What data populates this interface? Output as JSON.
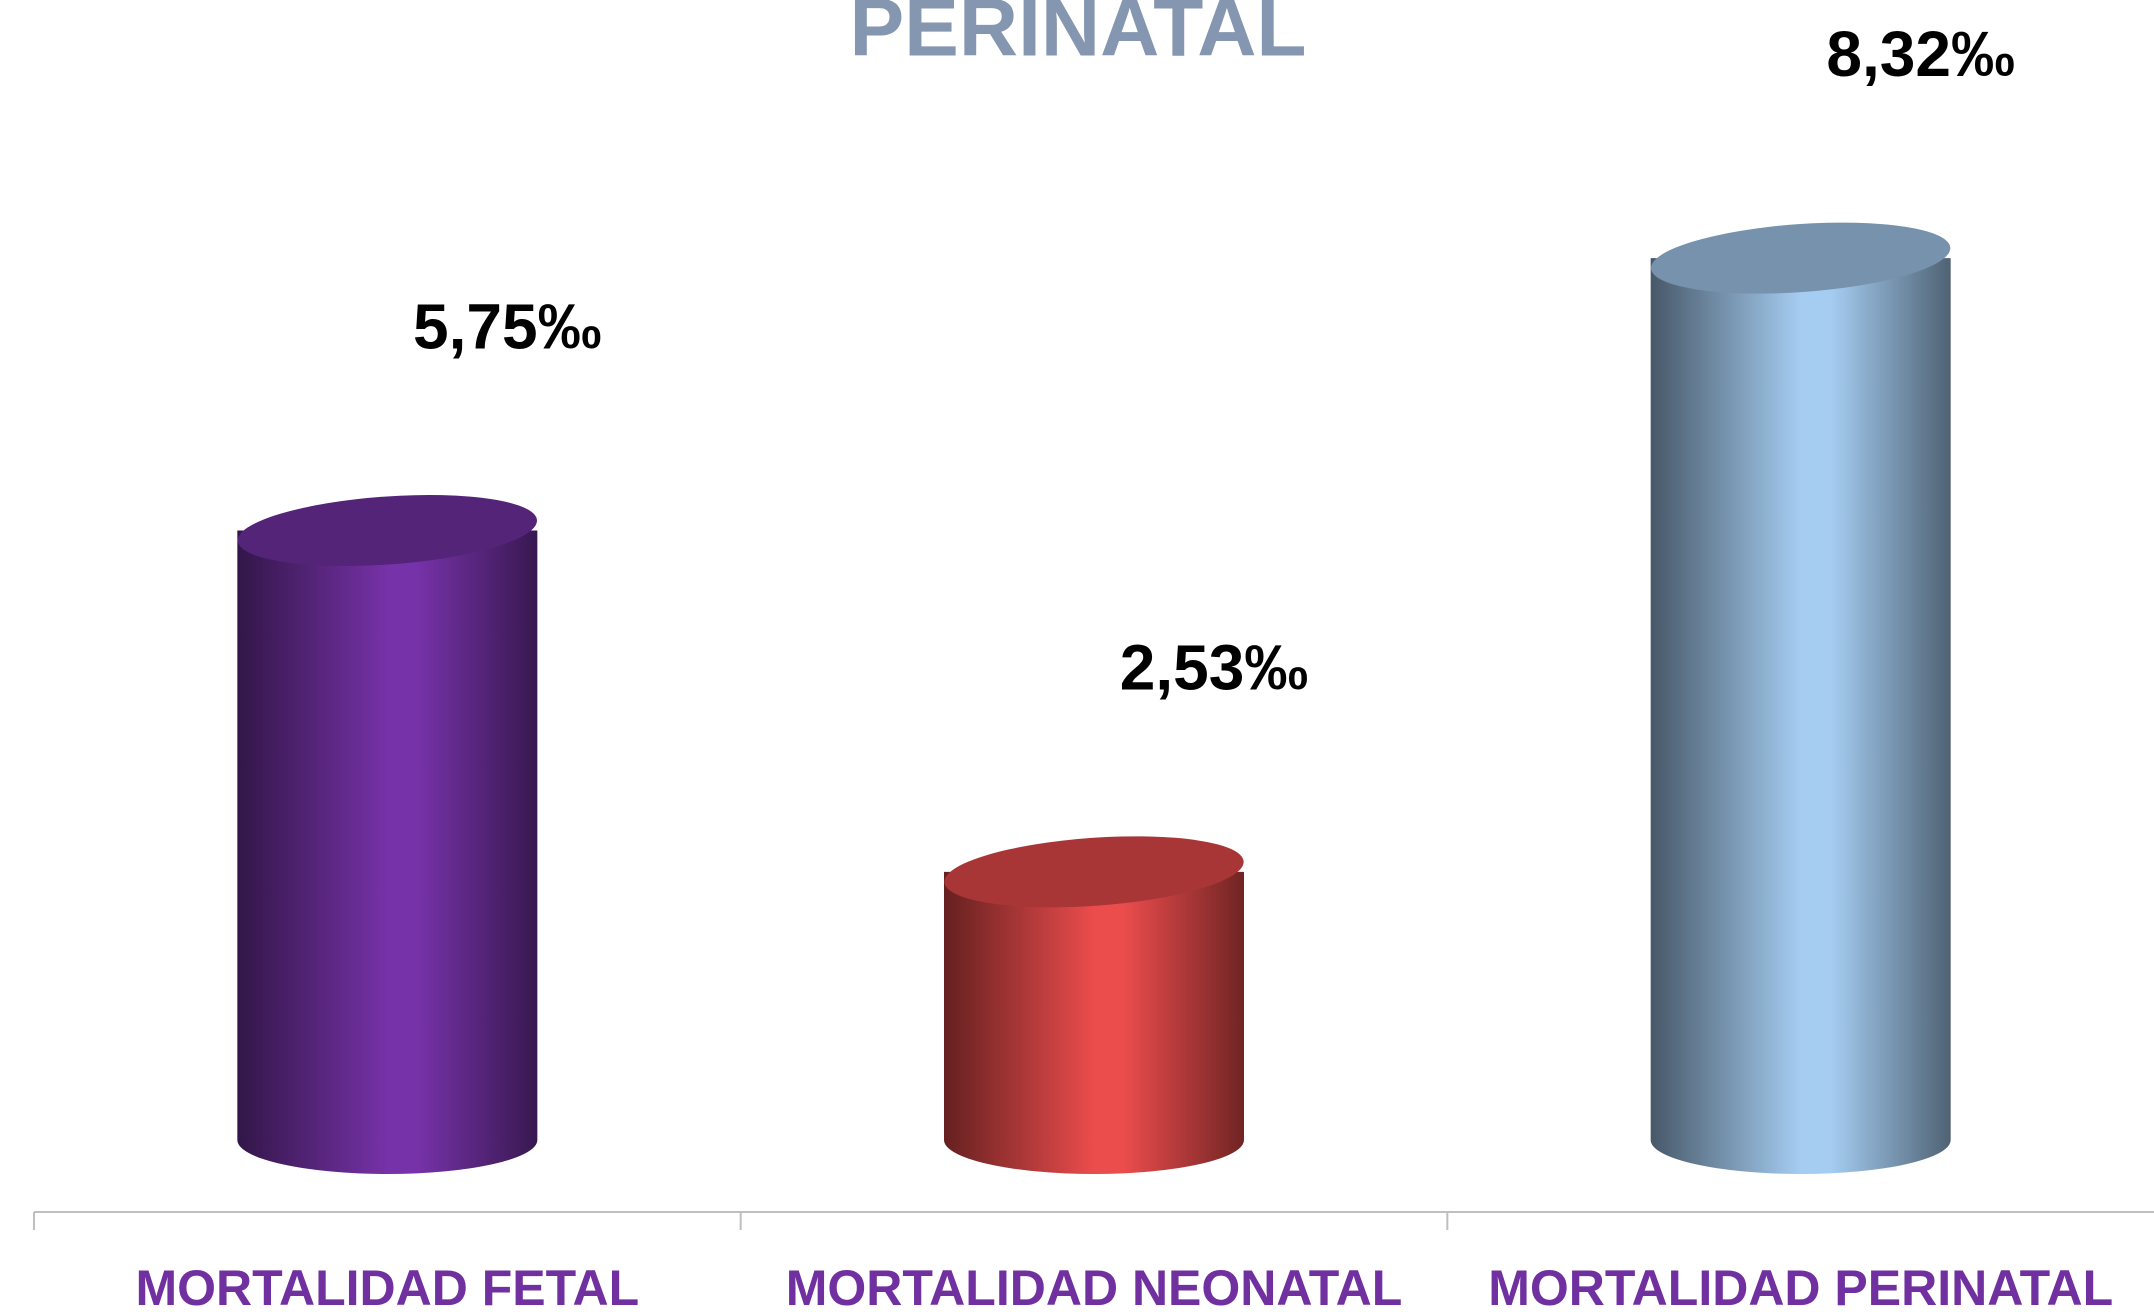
{
  "chart_data": {
    "type": "bar",
    "title": "PERINATAL",
    "categories": [
      "MORTALIDAD FETAL",
      "MORTALIDAD NEONATAL",
      "MORTALIDAD PERINATAL"
    ],
    "values": [
      5.75,
      2.53,
      8.32
    ],
    "value_labels": [
      "5,75‰",
      "2,53‰",
      "8,32‰"
    ],
    "colors": [
      "#7030a0",
      "#e04848",
      "#9dc3e6"
    ],
    "ylim": [
      0,
      10
    ]
  }
}
